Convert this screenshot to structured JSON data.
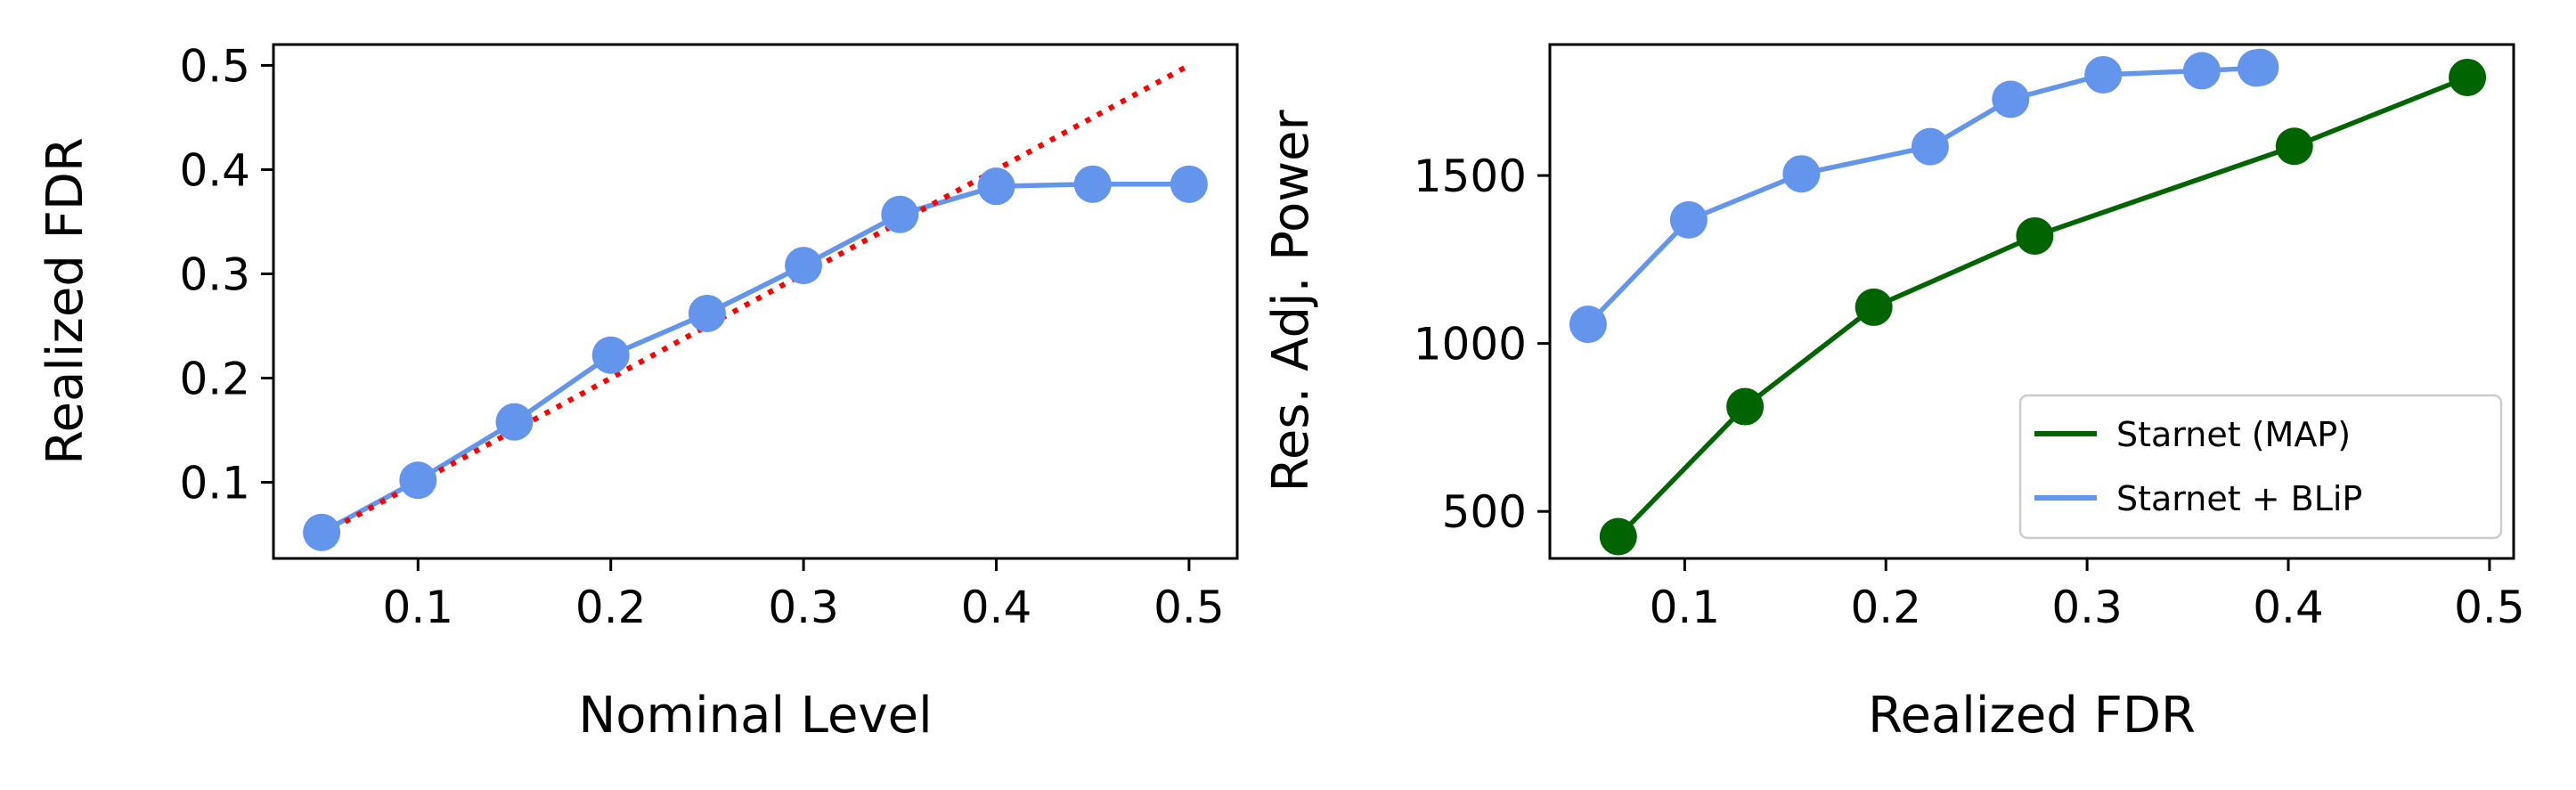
{
  "chart_data": [
    {
      "type": "line",
      "xlabel": "Nominal Level",
      "ylabel": "Realized FDR",
      "xlim": [
        0.025,
        0.525
      ],
      "ylim": [
        0.027,
        0.52
      ],
      "xticks": [
        0.1,
        0.2,
        0.3,
        0.4,
        0.5
      ],
      "xtick_labels": [
        "0.1",
        "0.2",
        "0.3",
        "0.4",
        "0.5"
      ],
      "yticks": [
        0.1,
        0.2,
        0.3,
        0.4,
        0.5
      ],
      "ytick_labels": [
        "0.1",
        "0.2",
        "0.3",
        "0.4",
        "0.5"
      ],
      "grid": false,
      "series": [
        {
          "color": "#6495ED",
          "style": "line-markers",
          "x": [
            0.05,
            0.1,
            0.15,
            0.2,
            0.25,
            0.3,
            0.35,
            0.4,
            0.45,
            0.5
          ],
          "y": [
            0.052,
            0.102,
            0.158,
            0.222,
            0.262,
            0.308,
            0.357,
            0.384,
            0.386,
            0.386
          ]
        },
        {
          "color": "#FF0000",
          "style": "dotted",
          "x": [
            0.05,
            0.5
          ],
          "y": [
            0.05,
            0.5
          ]
        }
      ]
    },
    {
      "type": "line",
      "xlabel": "Realized FDR",
      "ylabel": "Res. Adj. Power",
      "xlim": [
        0.033,
        0.512
      ],
      "ylim": [
        360,
        1890
      ],
      "xticks": [
        0.1,
        0.2,
        0.3,
        0.4,
        0.5
      ],
      "xtick_labels": [
        "0.1",
        "0.2",
        "0.3",
        "0.4",
        "0.5"
      ],
      "yticks": [
        500,
        1000,
        1500
      ],
      "ytick_labels": [
        "500",
        "1000",
        "1500"
      ],
      "grid": false,
      "legend_position": "lower-right",
      "series": [
        {
          "name": "Starnet (MAP)",
          "color": "#006400",
          "style": "line-markers",
          "x": [
            0.067,
            0.13,
            0.194,
            0.274,
            0.403,
            0.489
          ],
          "y": [
            425,
            812,
            1108,
            1320,
            1587,
            1792
          ]
        },
        {
          "name": "Starnet + BLiP",
          "color": "#6495ED",
          "style": "line-markers",
          "x": [
            0.052,
            0.102,
            0.158,
            0.222,
            0.262,
            0.308,
            0.357,
            0.384,
            0.386
          ],
          "y": [
            1057,
            1368,
            1505,
            1586,
            1727,
            1800,
            1812,
            1820,
            1822
          ]
        }
      ]
    }
  ]
}
